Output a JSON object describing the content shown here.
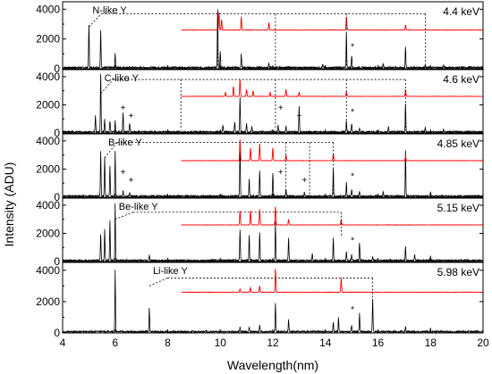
{
  "chart_data": {
    "type": "line",
    "xlabel": "Wavelength(nm)",
    "ylabel": "Intensity (ADU)",
    "xlim": [
      4,
      20
    ],
    "xticks": [
      "4",
      "6",
      "8",
      "10",
      "12",
      "14",
      "16",
      "18",
      "20"
    ],
    "ylim": [
      0,
      4500
    ],
    "yticks": [
      "0",
      "2000",
      "4000"
    ],
    "grid": false,
    "colors": {
      "measured": "#000000",
      "simulated": "#ff0000",
      "bracket": "#000000"
    },
    "panels": [
      {
        "label": "N-like Y",
        "energy": "4.4 keV",
        "red_offset": 2600,
        "peaks": [
          [
            5.0,
            2900
          ],
          [
            5.45,
            2500
          ],
          [
            6.0,
            1000
          ],
          [
            9.9,
            3900
          ],
          [
            10.0,
            1100
          ],
          [
            10.8,
            900
          ],
          [
            11.85,
            300
          ],
          [
            13.9,
            200
          ],
          [
            14.8,
            2400
          ],
          [
            15.0,
            800
          ],
          [
            16.2,
            300
          ],
          [
            17.05,
            1400
          ],
          [
            17.8,
            200
          ],
          [
            18.5,
            150
          ]
        ],
        "red_peaks": [
          [
            9.95,
            1200
          ],
          [
            10.05,
            700
          ],
          [
            10.8,
            900
          ],
          [
            11.85,
            500
          ],
          [
            14.8,
            900
          ],
          [
            17.05,
            350
          ]
        ],
        "bracket_x": [
          5.0,
          9.9,
          12.1,
          14.8,
          17.8
        ],
        "bracket_y": 3700,
        "asterisks": [
          15.0
        ],
        "pluses": []
      },
      {
        "label": "C-like Y",
        "energy": "4.6 keV",
        "red_offset": 2600,
        "peaks": [
          [
            5.25,
            1200
          ],
          [
            5.45,
            4100
          ],
          [
            5.6,
            900
          ],
          [
            5.8,
            800
          ],
          [
            6.0,
            850
          ],
          [
            6.3,
            1400
          ],
          [
            6.55,
            600
          ],
          [
            10.1,
            500
          ],
          [
            10.55,
            700
          ],
          [
            10.75,
            2500
          ],
          [
            11.0,
            600
          ],
          [
            11.2,
            400
          ],
          [
            12.2,
            500
          ],
          [
            12.5,
            400
          ],
          [
            13.0,
            1800
          ],
          [
            14.8,
            800
          ],
          [
            15.0,
            600
          ],
          [
            15.3,
            300
          ],
          [
            16.4,
            400
          ],
          [
            17.05,
            2000
          ],
          [
            17.8,
            300
          ],
          [
            18.5,
            200
          ]
        ],
        "red_peaks": [
          [
            10.2,
            300
          ],
          [
            10.5,
            700
          ],
          [
            10.75,
            1200
          ],
          [
            11.0,
            500
          ],
          [
            11.25,
            400
          ],
          [
            11.9,
            300
          ],
          [
            12.5,
            500
          ],
          [
            13.0,
            300
          ],
          [
            14.8,
            350
          ],
          [
            17.05,
            500
          ]
        ],
        "bracket_x": [
          5.45,
          8.5,
          12.1,
          14.8,
          17.05
        ],
        "bracket_y": 3800,
        "asterisks": [
          15.0
        ],
        "pluses": [
          6.3,
          6.6,
          12.3,
          13.0
        ]
      },
      {
        "label": "B-like Y",
        "energy": "4.85 keV",
        "red_offset": 2600,
        "peaks": [
          [
            5.45,
            3200
          ],
          [
            5.6,
            2800
          ],
          [
            5.8,
            2100
          ],
          [
            6.0,
            3200
          ],
          [
            6.3,
            400
          ],
          [
            6.55,
            250
          ],
          [
            10.75,
            3600
          ],
          [
            11.1,
            1200
          ],
          [
            11.5,
            1800
          ],
          [
            12.0,
            1600
          ],
          [
            12.5,
            500
          ],
          [
            13.2,
            300
          ],
          [
            14.3,
            2000
          ],
          [
            14.8,
            1000
          ],
          [
            15.0,
            500
          ],
          [
            15.3,
            300
          ],
          [
            16.2,
            300
          ],
          [
            17.05,
            3300
          ],
          [
            18.0,
            300
          ]
        ],
        "red_peaks": [
          [
            10.75,
            1500
          ],
          [
            11.15,
            900
          ],
          [
            11.5,
            1200
          ],
          [
            12.0,
            900
          ],
          [
            12.5,
            400
          ],
          [
            14.3,
            500
          ],
          [
            17.05,
            300
          ]
        ],
        "bracket_x": [
          5.6,
          12.5,
          13.4,
          14.3
        ],
        "bracket_y": 3900,
        "asterisks": [
          15.0
        ],
        "pluses": [
          6.3,
          6.6,
          12.3,
          13.2
        ]
      },
      {
        "label": "Be-like Y",
        "energy": "5.15 keV",
        "red_offset": 2600,
        "peaks": [
          [
            5.45,
            1900
          ],
          [
            5.6,
            2200
          ],
          [
            5.8,
            2800
          ],
          [
            6.0,
            4000
          ],
          [
            7.3,
            400
          ],
          [
            10.75,
            2200
          ],
          [
            11.1,
            1800
          ],
          [
            11.5,
            2000
          ],
          [
            12.1,
            2700
          ],
          [
            12.6,
            1600
          ],
          [
            13.5,
            500
          ],
          [
            14.3,
            1600
          ],
          [
            14.8,
            600
          ],
          [
            15.0,
            400
          ],
          [
            15.3,
            1300
          ],
          [
            15.8,
            300
          ],
          [
            17.05,
            1000
          ],
          [
            17.4,
            400
          ],
          [
            18.0,
            300
          ]
        ],
        "red_peaks": [
          [
            10.75,
            1000
          ],
          [
            11.15,
            1000
          ],
          [
            11.5,
            1100
          ],
          [
            12.1,
            1300
          ],
          [
            12.6,
            400
          ],
          [
            14.6,
            400
          ]
        ],
        "bracket_x": [
          6.0,
          14.6
        ],
        "bracket_y": 3500,
        "asterisks": [
          15.0
        ],
        "pluses": []
      },
      {
        "label": "Li-like Y",
        "energy": "5.98 keV",
        "red_offset": 2600,
        "peaks": [
          [
            6.0,
            3900
          ],
          [
            7.3,
            1500
          ],
          [
            10.75,
            300
          ],
          [
            11.1,
            300
          ],
          [
            11.5,
            400
          ],
          [
            12.1,
            1800
          ],
          [
            12.6,
            800
          ],
          [
            14.3,
            600
          ],
          [
            14.5,
            900
          ],
          [
            15.0,
            400
          ],
          [
            15.3,
            1200
          ],
          [
            15.8,
            2100
          ],
          [
            17.05,
            300
          ],
          [
            18.0,
            200
          ]
        ],
        "red_peaks": [
          [
            10.75,
            200
          ],
          [
            11.15,
            300
          ],
          [
            11.5,
            400
          ],
          [
            12.1,
            1500
          ],
          [
            14.6,
            900
          ]
        ],
        "bracket_x": [
          7.3,
          15.8
        ],
        "bracket_y": 3500,
        "asterisks": [
          15.0
        ],
        "pluses": []
      }
    ]
  }
}
